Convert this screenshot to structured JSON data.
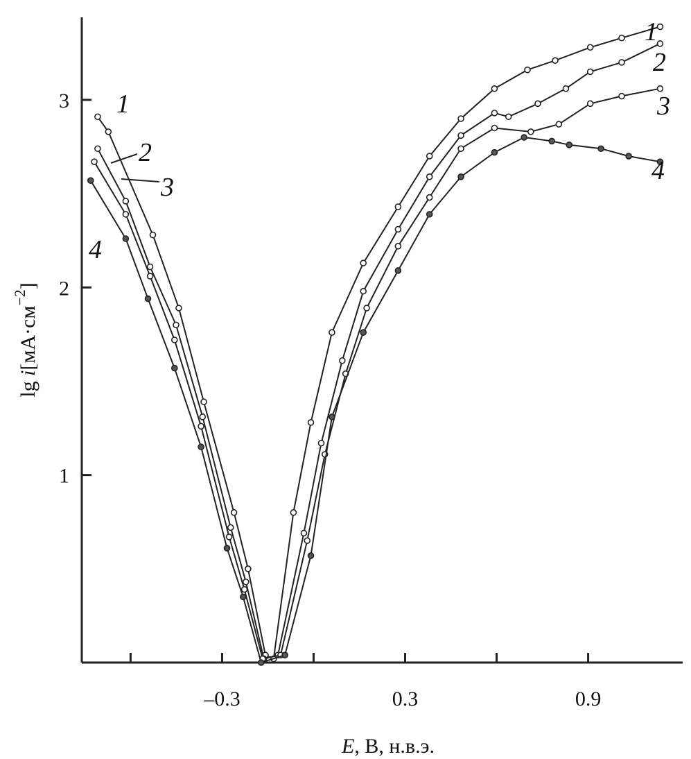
{
  "chart_data": {
    "type": "line",
    "title": "",
    "xlabel": {
      "italic": "E",
      "rest": ", В, н.в.э."
    },
    "ylabel": {
      "main": "lg ",
      "italic": "i",
      "unit": "[мА·см",
      "sup": "−2",
      "close": "]"
    },
    "xlim": [
      -0.76,
      1.21
    ],
    "ylim": [
      0,
      3.44
    ],
    "x_ticks": [
      -0.6,
      -0.3,
      0,
      0.3,
      0.6,
      0.9
    ],
    "x_tick_labels": [
      {
        "value": -0.3,
        "label": "–0.3"
      },
      {
        "value": 0.3,
        "label": "0.3"
      },
      {
        "value": 0.9,
        "label": "0.9"
      }
    ],
    "y_ticks": [
      1,
      2,
      3
    ],
    "y_tick_labels": [
      "1",
      "2",
      "3"
    ],
    "grid": false,
    "colors": {
      "line": "#222222",
      "marker_fill": "#ffffff"
    },
    "series": [
      {
        "label": "1",
        "points": [
          [
            -0.708,
            2.91
          ],
          [
            -0.673,
            2.83
          ],
          [
            -0.527,
            2.28
          ],
          [
            -0.442,
            1.89
          ],
          [
            -0.36,
            1.39
          ],
          [
            -0.261,
            0.8
          ],
          [
            -0.215,
            0.5
          ],
          [
            -0.158,
            0.04
          ],
          [
            -0.131,
            0.02
          ],
          [
            -0.066,
            0.8
          ],
          [
            -0.009,
            1.28
          ],
          [
            0.06,
            1.76
          ],
          [
            0.163,
            2.13
          ],
          [
            0.277,
            2.43
          ],
          [
            0.38,
            2.7
          ],
          [
            0.483,
            2.9
          ],
          [
            0.593,
            3.06
          ],
          [
            0.701,
            3.16
          ],
          [
            0.792,
            3.21
          ],
          [
            0.907,
            3.28
          ],
          [
            1.01,
            3.33
          ],
          [
            1.136,
            3.39
          ]
        ]
      },
      {
        "label": "2",
        "points": [
          [
            -0.708,
            2.74
          ],
          [
            -0.616,
            2.46
          ],
          [
            -0.536,
            2.11
          ],
          [
            -0.451,
            1.8
          ],
          [
            -0.364,
            1.31
          ],
          [
            -0.272,
            0.72
          ],
          [
            -0.222,
            0.43
          ],
          [
            -0.163,
            0.02
          ],
          [
            -0.117,
            0.04
          ],
          [
            -0.032,
            0.69
          ],
          [
            0.025,
            1.17
          ],
          [
            0.094,
            1.61
          ],
          [
            0.163,
            1.98
          ],
          [
            0.277,
            2.31
          ],
          [
            0.38,
            2.59
          ],
          [
            0.483,
            2.81
          ],
          [
            0.593,
            2.93
          ],
          [
            0.639,
            2.91
          ],
          [
            0.735,
            2.98
          ],
          [
            0.827,
            3.06
          ],
          [
            0.907,
            3.15
          ],
          [
            1.01,
            3.2
          ],
          [
            1.136,
            3.3
          ]
        ]
      },
      {
        "label": "3",
        "points": [
          [
            -0.719,
            2.67
          ],
          [
            -0.616,
            2.39
          ],
          [
            -0.536,
            2.06
          ],
          [
            -0.456,
            1.72
          ],
          [
            -0.369,
            1.26
          ],
          [
            -0.277,
            0.67
          ],
          [
            -0.227,
            0.39
          ],
          [
            -0.167,
            0.02
          ],
          [
            -0.108,
            0.04
          ],
          [
            -0.021,
            0.65
          ],
          [
            0.037,
            1.11
          ],
          [
            0.105,
            1.54
          ],
          [
            0.174,
            1.89
          ],
          [
            0.277,
            2.22
          ],
          [
            0.38,
            2.48
          ],
          [
            0.483,
            2.74
          ],
          [
            0.593,
            2.85
          ],
          [
            0.712,
            2.83
          ],
          [
            0.804,
            2.87
          ],
          [
            0.907,
            2.98
          ],
          [
            1.01,
            3.02
          ],
          [
            1.136,
            3.06
          ]
        ]
      },
      {
        "label": "4",
        "points": [
          [
            -0.731,
            2.57
          ],
          [
            -0.616,
            2.26
          ],
          [
            -0.543,
            1.94
          ],
          [
            -0.456,
            1.57
          ],
          [
            -0.369,
            1.15
          ],
          [
            -0.284,
            0.61
          ],
          [
            -0.231,
            0.35
          ],
          [
            -0.172,
            0.0
          ],
          [
            -0.094,
            0.04
          ],
          [
            -0.009,
            0.57
          ],
          [
            0.06,
            1.31
          ],
          [
            0.163,
            1.76
          ],
          [
            0.277,
            2.09
          ],
          [
            0.38,
            2.39
          ],
          [
            0.483,
            2.59
          ],
          [
            0.593,
            2.72
          ],
          [
            0.69,
            2.8
          ],
          [
            0.781,
            2.78
          ],
          [
            0.838,
            2.76
          ],
          [
            0.942,
            2.74
          ],
          [
            1.033,
            2.7
          ],
          [
            1.136,
            2.67
          ]
        ]
      }
    ]
  }
}
